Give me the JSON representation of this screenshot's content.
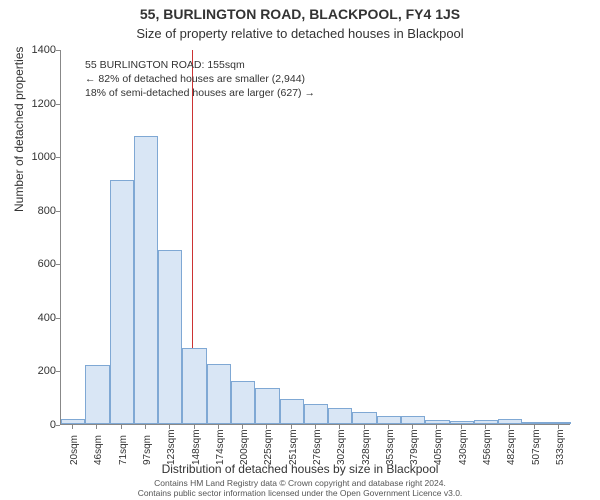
{
  "title_line1": "55, BURLINGTON ROAD, BLACKPOOL, FY4 1JS",
  "title_line2": "Size of property relative to detached houses in Blackpool",
  "ylabel": "Number of detached properties",
  "xlabel": "Distribution of detached houses by size in Blackpool",
  "chart": {
    "type": "histogram",
    "ylim": [
      0,
      1400
    ],
    "ytick_step": 200,
    "yticks": [
      0,
      200,
      400,
      600,
      800,
      1000,
      1200,
      1400
    ],
    "xtick_labels": [
      "20sqm",
      "46sqm",
      "71sqm",
      "97sqm",
      "123sqm",
      "148sqm",
      "174sqm",
      "200sqm",
      "225sqm",
      "251sqm",
      "276sqm",
      "302sqm",
      "328sqm",
      "353sqm",
      "379sqm",
      "405sqm",
      "430sqm",
      "456sqm",
      "482sqm",
      "507sqm",
      "533sqm"
    ],
    "bar_values": [
      20,
      220,
      910,
      1075,
      650,
      285,
      225,
      160,
      135,
      95,
      75,
      60,
      45,
      30,
      30,
      15,
      10,
      15,
      20,
      5,
      8
    ],
    "bar_fill": "#d9e6f5",
    "bar_border": "#7fa8d4",
    "bar_width_ratio": 1.0,
    "reference_line": {
      "position_index": 5.4,
      "color": "#cc3333"
    },
    "background_color": "#ffffff",
    "axis_color": "#888888",
    "text_color": "#333333",
    "title_fontsize": 14,
    "subtitle_fontsize": 13,
    "label_fontsize": 12,
    "tick_fontsize": 11
  },
  "infobox": {
    "line1": "55 BURLINGTON ROAD: 155sqm",
    "line2": "← 82% of detached houses are smaller (2,944)",
    "line3": "18% of semi-detached houses are larger (627) →"
  },
  "footer": {
    "line1": "Contains HM Land Registry data © Crown copyright and database right 2024.",
    "line2": "Contains public sector information licensed under the Open Government Licence v3.0."
  }
}
